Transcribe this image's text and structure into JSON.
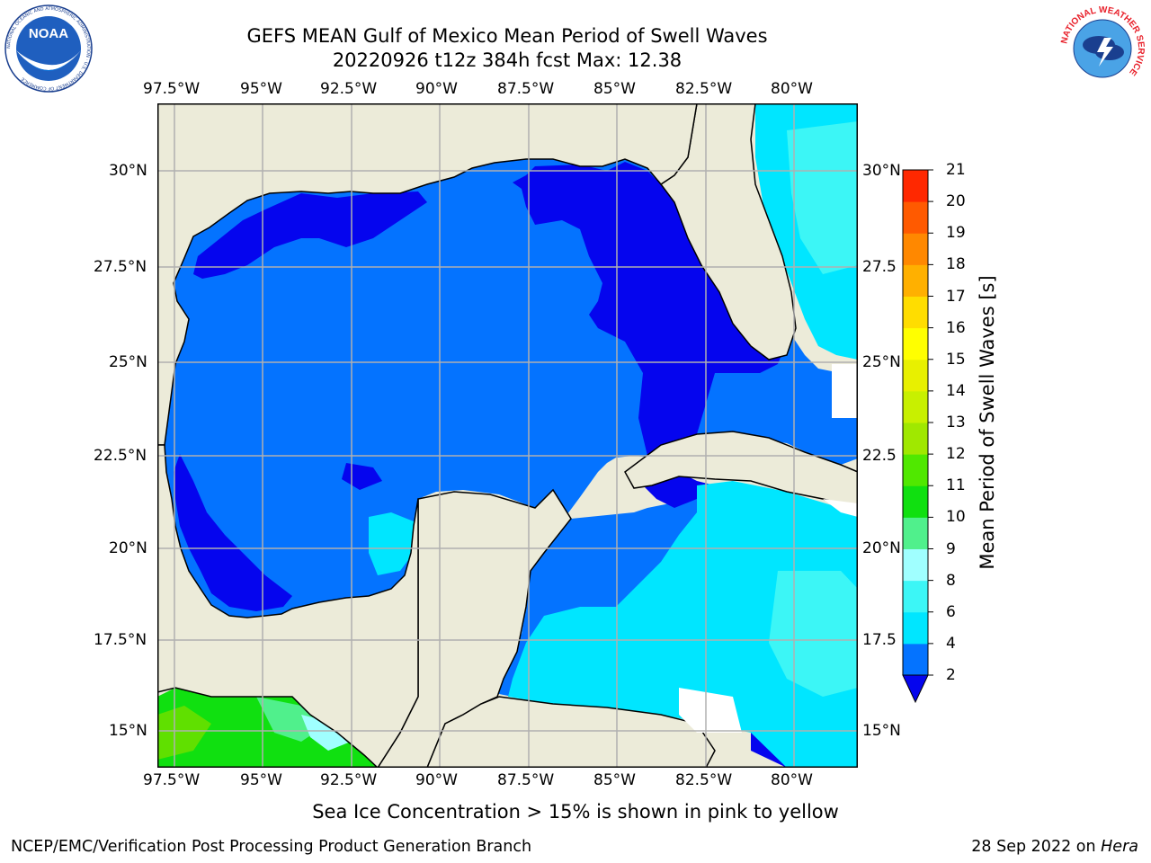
{
  "header": {
    "title_line1": "GEFS MEAN Gulf of Mexico Mean Period of Swell Waves",
    "title_line2": "20220926 t12z 384h fcst   Max: 12.38"
  },
  "logos": {
    "left": {
      "name": "noaa-logo",
      "text": "NOAA",
      "ring_text": "NATIONAL OCEANIC AND ATMOSPHERIC ADMINISTRATION · U.S. DEPARTMENT OF COMMERCE"
    },
    "right": {
      "name": "nws-logo",
      "ring_text": "NATIONAL WEATHER SERVICE"
    }
  },
  "map": {
    "lon_labels": [
      "97.5°W",
      "95°W",
      "92.5°W",
      "90°W",
      "87.5°W",
      "85°W",
      "82.5°W",
      "80°W"
    ],
    "lat_labels_left": [
      "30°N",
      "27.5°N",
      "25°N",
      "22.5°N",
      "20°N",
      "17.5°N",
      "15°N"
    ],
    "lat_labels_right": [
      "30°N",
      "27.5",
      "25°N",
      "22.5",
      "20°N",
      "17.5",
      "15°N"
    ],
    "colors": {
      "land": "#ecebd9",
      "water_2_4": "#0473ff",
      "water_lt2": "#0505ee",
      "water_4_6": "#00e6ff",
      "water_6_8": "#3cf6f6",
      "water_8_9": "#a0ffff",
      "water_9_10": "#50f08c",
      "water_10_11": "#10e010",
      "water_11_12": "#60e000",
      "no_data": "#ffffff",
      "grid": "#b0b0b0",
      "coast": "#000000"
    }
  },
  "colorbar": {
    "label": "Mean Period of Swell Waves [s]",
    "ticks": [
      "2",
      "4",
      "6",
      "8",
      "9",
      "10",
      "11",
      "12",
      "13",
      "14",
      "15",
      "16",
      "17",
      "18",
      "19",
      "20",
      "21"
    ],
    "colors": [
      "#0473ff",
      "#00e6ff",
      "#3cf6f6",
      "#a0ffff",
      "#50f08c",
      "#10e010",
      "#50e800",
      "#a0e800",
      "#c8f000",
      "#e8f000",
      "#ffff00",
      "#ffdd00",
      "#ffb000",
      "#ff8800",
      "#ff5a00",
      "#ff2800"
    ],
    "under_color": "#0505ee"
  },
  "footer": {
    "note": "Sea Ice Concentration > 15% is shown in pink to yellow",
    "left": "NCEP/EMC/Verification Post Processing Product Generation Branch",
    "right_prefix": "28 Sep 2022 on ",
    "right_host": "Hera"
  }
}
